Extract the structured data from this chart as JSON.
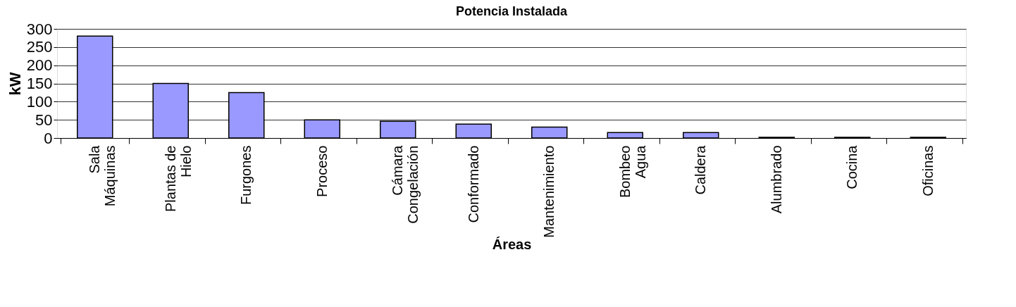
{
  "chart_data": {
    "type": "bar",
    "title": "Potencia Instalada",
    "xlabel": "Áreas",
    "ylabel": "kW",
    "categories": [
      "Sala Máquinas",
      "Plantas de Hielo",
      "Furgones",
      "Proceso",
      "Cámara Congelación",
      "Conformado",
      "Mantenimiento",
      "Bombeo Agua",
      "Caldera",
      "Alumbrado",
      "Cocina",
      "Oficinas"
    ],
    "values": [
      280,
      150,
      125,
      50,
      46,
      38,
      30,
      15,
      15,
      2,
      2,
      2
    ],
    "color": "#9999ff",
    "ylim": [
      0,
      300
    ],
    "yticks": [
      0,
      50,
      100,
      150,
      200,
      250,
      300
    ],
    "grid": "y"
  }
}
